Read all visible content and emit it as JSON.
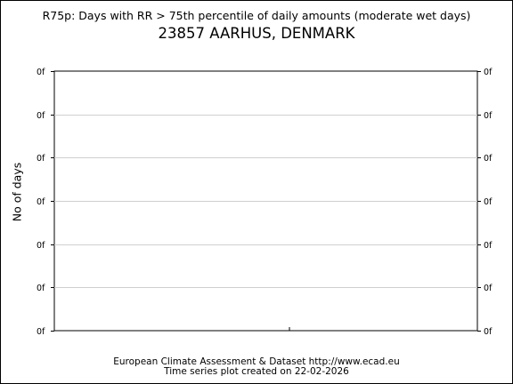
{
  "chart_data": {
    "type": "line",
    "title": "R75p: Days with RR > 75th percentile of daily amounts (moderate wet days)",
    "subtitle": "23857 AARHUS, DENMARK",
    "xlabel": "",
    "ylabel": "No of days",
    "y_tick_labels": [
      "0f",
      "0f",
      "0f",
      "0f",
      "0f",
      "0f",
      "0f"
    ],
    "series": [],
    "grid": true
  },
  "footer": {
    "line1": "European Climate Assessment & Dataset  http://www.ecad.eu",
    "line2": "Time series plot created on 22-02-2026"
  }
}
